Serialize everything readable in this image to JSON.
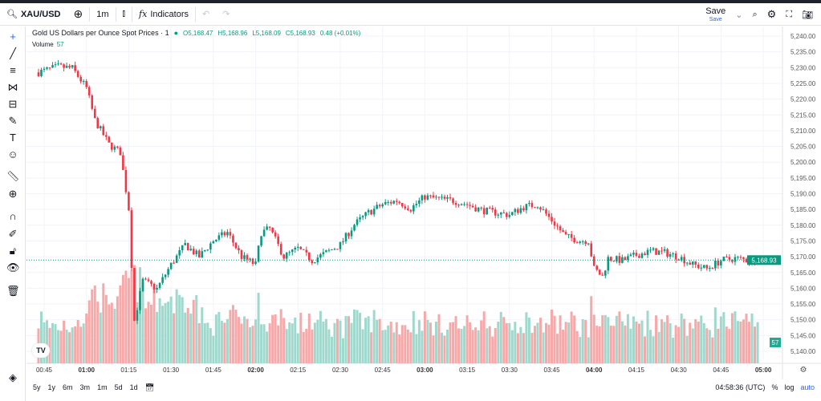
{
  "toolbar": {
    "symbol": "XAU/USD",
    "interval": "1m",
    "indicators": "Indicators",
    "save": "Save",
    "save_sub": "Save"
  },
  "legend": {
    "title": "Gold US Dollars per Ounce Spot Prices · 1",
    "open": "O5,168.47",
    "high": "H5,168.96",
    "low": "L5,168.09",
    "close": "C5,168.93",
    "change": "0.48 (+0.01%)",
    "volume_label": "Volume",
    "volume_value": "57"
  },
  "bottom": {
    "ranges": [
      "5y",
      "1y",
      "6m",
      "3m",
      "1m",
      "5d",
      "1d"
    ],
    "clock": "04:58:36 (UTC)",
    "percent": "%",
    "log": "log",
    "auto": "auto"
  },
  "colors": {
    "up": "#089981",
    "down": "#f23645",
    "vol_up": "#9fd8cc",
    "vol_down": "#f7a8a8"
  },
  "chart_data": {
    "type": "candlestick",
    "ylim": [
      5140,
      5240
    ],
    "yticks": [
      "5,240.00",
      "5,235.00",
      "5,230.00",
      "5,225.00",
      "5,220.00",
      "5,215.00",
      "5,210.00",
      "5,205.00",
      "5,200.00",
      "5,195.00",
      "5,190.00",
      "5,185.00",
      "5,180.00",
      "5,175.00",
      "5,170.00",
      "5,165.00",
      "5,160.00",
      "5,155.00",
      "5,150.00",
      "5,145.00",
      "5,140.00"
    ],
    "xticks": [
      "00:45",
      "01:00",
      "01:15",
      "01:30",
      "01:45",
      "02:00",
      "02:15",
      "02:30",
      "02:45",
      "03:00",
      "03:15",
      "03:30",
      "03:45",
      "04:00",
      "04:15",
      "04:30",
      "04:45",
      "05:00"
    ],
    "last_price": "5,168.93",
    "last_volume": "57",
    "close_path": [
      [
        "00:43",
        5228.5
      ],
      [
        "00:50",
        5230.3
      ],
      [
        "00:55",
        5229.8
      ],
      [
        "01:00",
        5223.5
      ],
      [
        "01:03",
        5213.3
      ],
      [
        "01:08",
        5205.6
      ],
      [
        "01:12",
        5203.1
      ],
      [
        "01:15",
        5185.3
      ],
      [
        "01:17",
        5149.7
      ],
      [
        "01:20",
        5162.4
      ],
      [
        "01:25",
        5159.8
      ],
      [
        "01:30",
        5167.5
      ],
      [
        "01:35",
        5173.8
      ],
      [
        "01:40",
        5170
      ],
      [
        "01:45",
        5175.1
      ],
      [
        "01:50",
        5177.7
      ],
      [
        "01:55",
        5170
      ],
      [
        "02:00",
        5167.5
      ],
      [
        "02:02",
        5177.7
      ],
      [
        "02:05",
        5178.9
      ],
      [
        "02:10",
        5170
      ],
      [
        "02:15",
        5172.6
      ],
      [
        "02:20",
        5168.8
      ],
      [
        "02:25",
        5171.3
      ],
      [
        "02:30",
        5173.8
      ],
      [
        "02:35",
        5180.2
      ],
      [
        "02:40",
        5184
      ],
      [
        "02:45",
        5186.6
      ],
      [
        "02:50",
        5187.8
      ],
      [
        "02:55",
        5185.3
      ],
      [
        "03:00",
        5189.1
      ],
      [
        "03:05",
        5188.3
      ],
      [
        "03:10",
        5187.8
      ],
      [
        "03:15",
        5186.6
      ],
      [
        "03:20",
        5184.8
      ],
      [
        "03:25",
        5184
      ],
      [
        "03:30",
        5183.3
      ],
      [
        "03:35",
        5185.8
      ],
      [
        "03:40",
        5186.6
      ],
      [
        "03:45",
        5181.5
      ],
      [
        "03:50",
        5176.4
      ],
      [
        "03:55",
        5175.1
      ],
      [
        "03:58",
        5175.1
      ],
      [
        "04:00",
        5166.2
      ],
      [
        "04:03",
        5163.7
      ],
      [
        "04:05",
        5169.5
      ],
      [
        "04:10",
        5168.8
      ],
      [
        "04:15",
        5170.5
      ],
      [
        "04:20",
        5171.8
      ],
      [
        "04:25",
        5171.3
      ],
      [
        "04:30",
        5170
      ],
      [
        "04:35",
        5167.5
      ],
      [
        "04:40",
        5166.2
      ],
      [
        "04:45",
        5168.8
      ],
      [
        "04:50",
        5169.5
      ],
      [
        "04:55",
        5168.8
      ],
      [
        "04:58",
        5168.93
      ]
    ]
  }
}
